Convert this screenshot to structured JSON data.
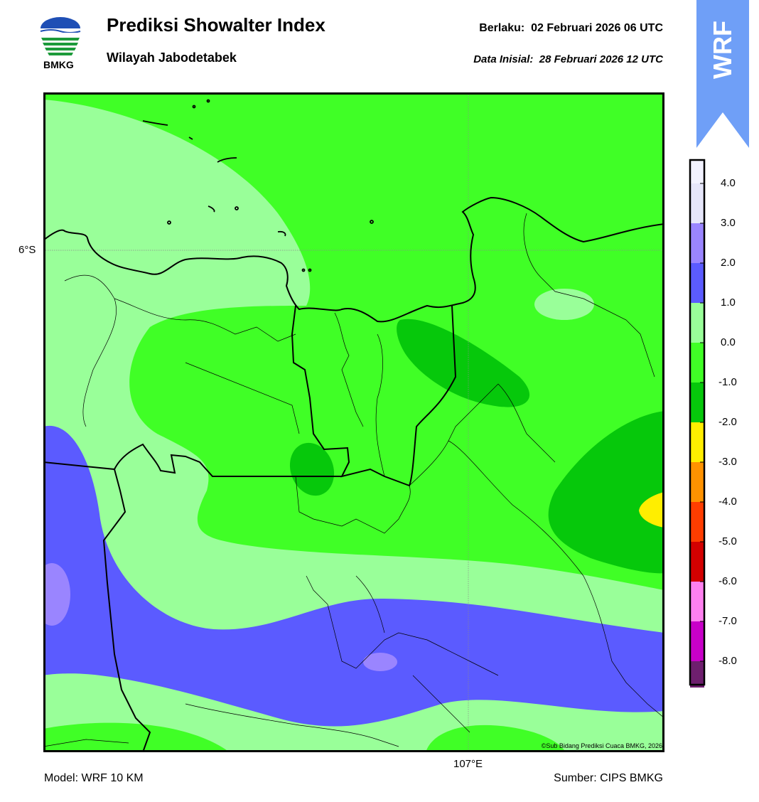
{
  "header": {
    "logo_text": "BMKG",
    "title": "Prediksi Showalter Index",
    "subtitle": "Wilayah Jabodetabek",
    "valid_label": "Berlaku:",
    "valid_value": "02 Februari 2026 06 UTC",
    "init_label": "Data Inisial:",
    "init_value": "28 Februari 2026 12 UTC"
  },
  "badge": {
    "text": "WRF",
    "color": "#6f9ff7"
  },
  "map": {
    "lat_label": "6°S",
    "lon_label": "107°E",
    "credit": "©Sub Bidang Prediksi Cuaca BMKG, 2026"
  },
  "colorbar": {
    "labels": [
      "4.0",
      "3.0",
      "2.0",
      "1.0",
      "0.0",
      "-1.0",
      "-2.0",
      "-3.0",
      "-4.0",
      "-5.0",
      "-6.0",
      "-7.0",
      "-8.0"
    ],
    "colors": [
      "#e6e6fa",
      "#9a85ff",
      "#5b5bff",
      "#99ff99",
      "#40ff26",
      "#06c80b",
      "#ffee00",
      "#ff9200",
      "#ff3d00",
      "#d40000",
      "#ff80f0",
      "#c800c8",
      "#6e1f6e"
    ]
  },
  "footer": {
    "model": "Model: WRF 10 KM",
    "source": "Sumber: CIPS BMKG"
  }
}
